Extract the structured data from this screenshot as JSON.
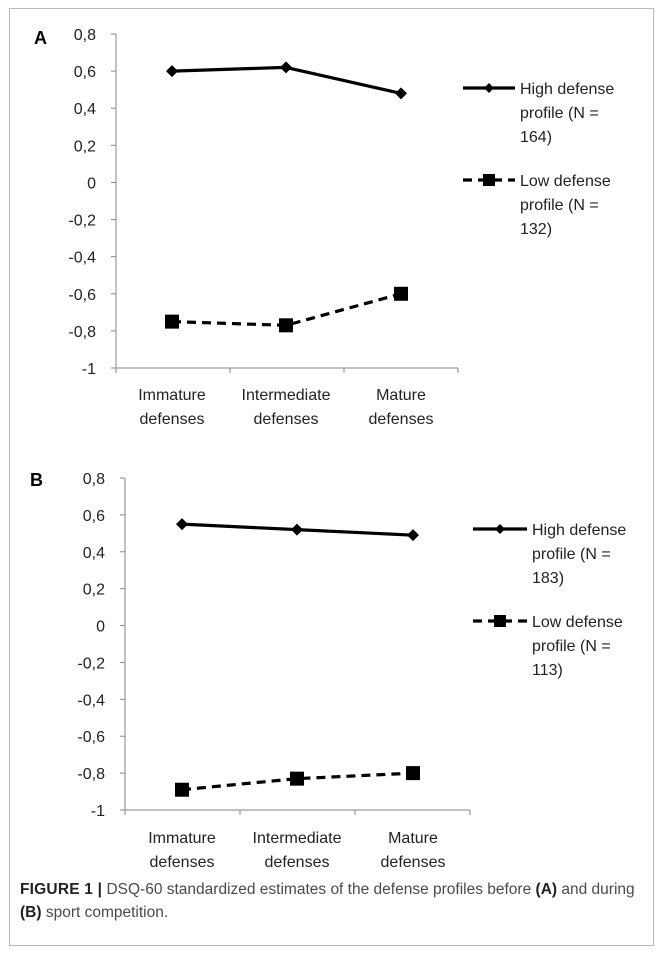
{
  "chart_data": [
    {
      "type": "line",
      "panel_label": "A",
      "categories": [
        "Immature defenses",
        "Intermediate defenses",
        "Mature defenses"
      ],
      "category_lines": [
        [
          "Immature",
          "defenses"
        ],
        [
          "Intermediate",
          "defenses"
        ],
        [
          "Mature",
          "defenses"
        ]
      ],
      "ylim": [
        -1,
        0.8
      ],
      "yticks": [
        "0,8",
        "0,6",
        "0,4",
        "0,2",
        "0",
        "-0,2",
        "-0,4",
        "-0,6",
        "-0,8",
        "-1"
      ],
      "ytick_values": [
        0.8,
        0.6,
        0.4,
        0.2,
        0,
        -0.2,
        -0.4,
        -0.6,
        -0.8,
        -1
      ],
      "series": [
        {
          "name": "High defense profile (N = 164)",
          "legend_lines": [
            "High defense",
            "profile (N =",
            "164)"
          ],
          "values": [
            0.6,
            0.62,
            0.48
          ],
          "marker": "diamond",
          "dash": "solid",
          "color": "#000000"
        },
        {
          "name": "Low defense profile (N = 132)",
          "legend_lines": [
            "Low defense",
            "profile (N =",
            "132)"
          ],
          "values": [
            -0.75,
            -0.77,
            -0.6
          ],
          "marker": "square",
          "dash": "dashed",
          "color": "#000000"
        }
      ],
      "grid": false,
      "legend": "right"
    },
    {
      "type": "line",
      "panel_label": "B",
      "categories": [
        "Immature defenses",
        "Intermediate defenses",
        "Mature defenses"
      ],
      "category_lines": [
        [
          "Immature",
          "defenses"
        ],
        [
          "Intermediate",
          "defenses"
        ],
        [
          "Mature",
          "defenses"
        ]
      ],
      "ylim": [
        -1,
        0.8
      ],
      "yticks": [
        "0,8",
        "0,6",
        "0,4",
        "0,2",
        "0",
        "-0,2",
        "-0,4",
        "-0,6",
        "-0,8",
        "-1"
      ],
      "ytick_values": [
        0.8,
        0.6,
        0.4,
        0.2,
        0,
        -0.2,
        -0.4,
        -0.6,
        -0.8,
        -1
      ],
      "series": [
        {
          "name": "High defense profile (N = 183)",
          "legend_lines": [
            "High defense",
            "profile (N =",
            "183)"
          ],
          "values": [
            0.55,
            0.52,
            0.49
          ],
          "marker": "diamond",
          "dash": "solid",
          "color": "#000000"
        },
        {
          "name": "Low defense profile (N = 113)",
          "legend_lines": [
            "Low defense",
            "profile (N =",
            "113)"
          ],
          "values": [
            -0.89,
            -0.83,
            -0.8
          ],
          "marker": "square",
          "dash": "dashed",
          "color": "#000000"
        }
      ],
      "grid": false,
      "legend": "right"
    }
  ],
  "caption": {
    "label": "FIGURE 1 |",
    "text_1": " DSQ-60 standardized estimates of the defense profiles before ",
    "ref_a": "(A)",
    "text_2": " and during ",
    "ref_b": "(B)",
    "text_3": " sport competition."
  },
  "colors": {
    "frame": "#b9b9b9",
    "axis": "#868686",
    "text": "#222222",
    "caption": "#4a4a4a"
  }
}
